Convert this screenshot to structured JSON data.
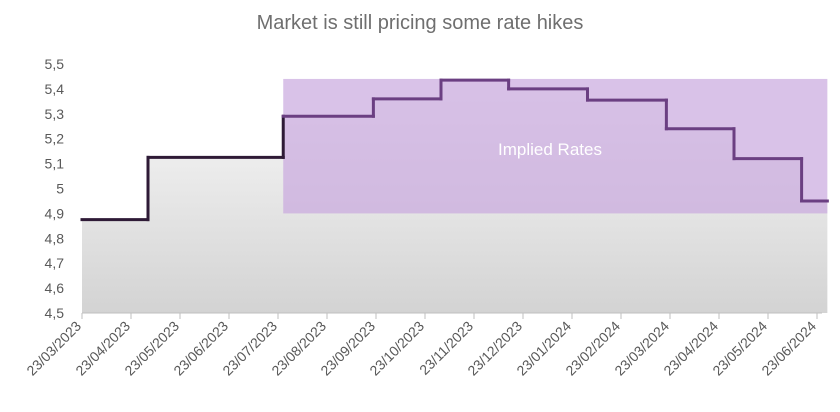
{
  "chart_data": {
    "type": "area",
    "title": "Market is still pricing some rate hikes",
    "xlabel": "",
    "ylabel": "",
    "ylim": [
      4.5,
      5.5
    ],
    "y_ticks": [
      "4,5",
      "4,6",
      "4,7",
      "4,8",
      "4,9",
      "5",
      "5,1",
      "5,2",
      "5,3",
      "5,4",
      "5,5"
    ],
    "x_ticks": [
      "23/03/2023",
      "23/04/2023",
      "23/05/2023",
      "23/06/2023",
      "23/07/2023",
      "23/08/2023",
      "23/09/2023",
      "23/10/2023",
      "23/11/2023",
      "23/12/2023",
      "23/01/2024",
      "23/02/2024",
      "23/03/2024",
      "23/04/2024",
      "23/05/2024",
      "23/06/2024"
    ],
    "grid": false,
    "series": [
      {
        "steps": [
          {
            "x": "23/03/2023",
            "y": 4.875
          },
          {
            "x": "03/05/2023",
            "y": 5.125
          },
          {
            "x": "26/07/2023",
            "y": 5.29
          },
          {
            "x": "20/09/2023",
            "y": 5.36
          },
          {
            "x": "01/11/2023",
            "y": 5.435
          },
          {
            "x": "13/12/2023",
            "y": 5.4
          },
          {
            "x": "31/01/2024",
            "y": 5.355
          },
          {
            "x": "20/03/2024",
            "y": 5.24
          },
          {
            "x": "01/05/2024",
            "y": 5.12
          },
          {
            "x": "12/06/2024",
            "y": 4.95
          },
          {
            "x": "28/06/2024",
            "y": 4.95
          }
        ]
      }
    ],
    "highlight_band": {
      "x_start": "26/07/2023",
      "x_end": "28/06/2024",
      "y_min": 4.9,
      "y_max": 5.44,
      "label": "Implied Rates"
    },
    "colors": {
      "area_fill_top": "#fafafa",
      "area_fill_bottom": "#d3d3d3",
      "line_before": "#2e1a36",
      "line_after": "#6b3f82",
      "band_fill": "#c9a8de",
      "band_fill_opacity": 0.7,
      "axis": "#bfbfbf",
      "annotation_text": "#ffffff"
    }
  }
}
